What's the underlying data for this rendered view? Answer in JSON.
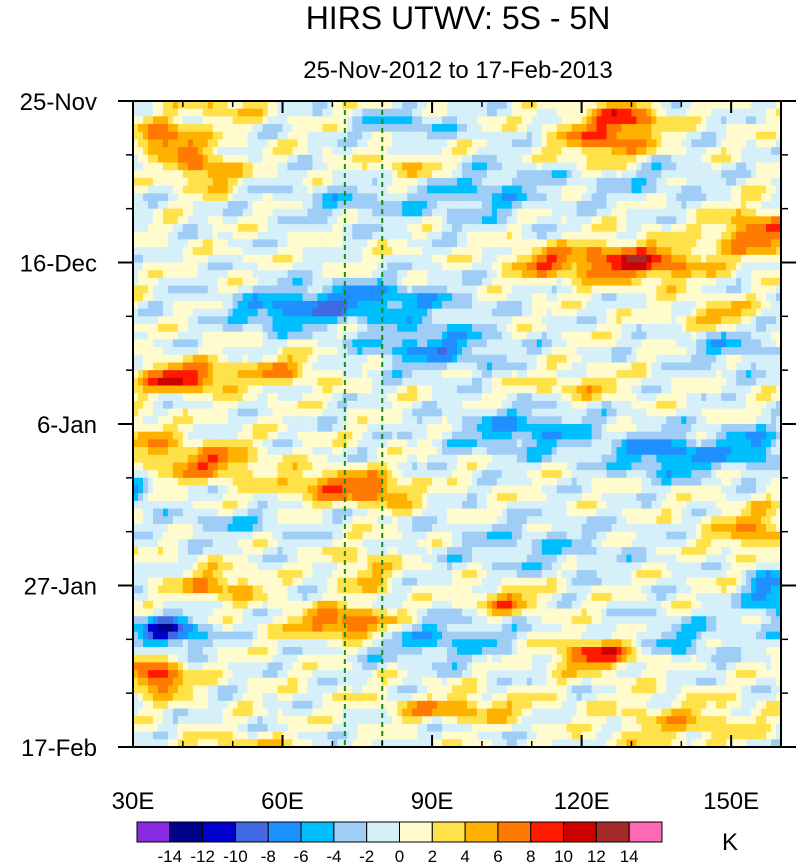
{
  "chart_data": {
    "type": "heatmap",
    "title": "HIRS UTWV: 5S - 5N",
    "subtitle": "25-Nov-2012 to 17-Feb-2013",
    "x_axis": {
      "range": [
        30,
        160
      ],
      "ticks": [
        {
          "value": 30,
          "label": "30E"
        },
        {
          "value": 60,
          "label": "60E"
        },
        {
          "value": 90,
          "label": "90E"
        },
        {
          "value": 120,
          "label": "120E"
        },
        {
          "value": 150,
          "label": "150E"
        }
      ],
      "minor_step": 10
    },
    "y_axis": {
      "range_days": [
        0,
        84
      ],
      "ticks": [
        {
          "value": 0,
          "label": "25-Nov"
        },
        {
          "value": 21,
          "label": "16-Dec"
        },
        {
          "value": 42,
          "label": "6-Jan"
        },
        {
          "value": 63,
          "label": "27-Jan"
        },
        {
          "value": 84,
          "label": "17-Feb"
        }
      ],
      "minor_step": 7
    },
    "reference_lines_lon": [
      72.5,
      80
    ],
    "colorbar": {
      "unit": "K",
      "levels": [
        -14,
        -12,
        -10,
        -8,
        -6,
        -4,
        -2,
        0,
        2,
        4,
        6,
        8,
        10,
        12,
        14
      ],
      "labels": [
        "-14",
        "-12",
        "-10",
        "-8",
        "-6",
        "-4",
        "-2",
        "0",
        "2",
        "4",
        "6",
        "8",
        "10",
        "12",
        "14"
      ],
      "colors": [
        "#8a2be2",
        "#00008b",
        "#0000cd",
        "#4169e1",
        "#1e90ff",
        "#00bfff",
        "#a0cdf6",
        "#d6f0fa",
        "#fffbcc",
        "#ffe14a",
        "#ffb100",
        "#ff7a00",
        "#ff1a00",
        "#cc0000",
        "#a52a2a",
        "#ff69b4"
      ]
    },
    "anomaly_features": [
      {
        "lon": 37,
        "day": 5,
        "dlon": 6,
        "dday": 2.2,
        "amp": 9
      },
      {
        "lon": 45,
        "day": 9,
        "dlon": 6,
        "dday": 2.5,
        "amp": 7
      },
      {
        "lon": 48,
        "day": 1,
        "dlon": 8,
        "dday": 1.8,
        "amp": 4
      },
      {
        "lon": 125,
        "day": 5,
        "dlon": 9,
        "dday": 3.5,
        "amp": 8
      },
      {
        "lon": 130,
        "day": 2,
        "dlon": 6,
        "dday": 2,
        "amp": 6
      },
      {
        "lon": 85,
        "day": 9,
        "dlon": 8,
        "dday": 2,
        "amp": 4
      },
      {
        "lon": 130,
        "day": 21,
        "dlon": 14,
        "dday": 2.5,
        "amp": 10
      },
      {
        "lon": 155,
        "day": 17,
        "dlon": 8,
        "dday": 3,
        "amp": 8
      },
      {
        "lon": 112,
        "day": 21,
        "dlon": 7,
        "dday": 2,
        "amp": 5
      },
      {
        "lon": 148,
        "day": 28,
        "dlon": 8,
        "dday": 2,
        "amp": 7
      },
      {
        "lon": 40,
        "day": 36,
        "dlon": 10,
        "dday": 1.8,
        "amp": 10
      },
      {
        "lon": 60,
        "day": 35,
        "dlon": 8,
        "dday": 2,
        "amp": 5
      },
      {
        "lon": 45,
        "day": 47,
        "dlon": 10,
        "dday": 2.5,
        "amp": 7
      },
      {
        "lon": 70,
        "day": 50,
        "dlon": 10,
        "dday": 2,
        "amp": 7
      },
      {
        "lon": 80,
        "day": 51,
        "dlon": 6,
        "dday": 1.8,
        "amp": 6
      },
      {
        "lon": 33,
        "day": 44,
        "dlon": 5,
        "dday": 3,
        "amp": 4
      },
      {
        "lon": 155,
        "day": 56,
        "dlon": 8,
        "dday": 3,
        "amp": 6
      },
      {
        "lon": 120,
        "day": 37,
        "dlon": 10,
        "dday": 1.5,
        "amp": 4
      },
      {
        "lon": 47,
        "day": 63,
        "dlon": 8,
        "dday": 2,
        "amp": 6
      },
      {
        "lon": 77,
        "day": 61,
        "dlon": 6,
        "dday": 3,
        "amp": 4
      },
      {
        "lon": 73,
        "day": 68,
        "dlon": 10,
        "dday": 2,
        "amp": 10
      },
      {
        "lon": 105,
        "day": 65,
        "dlon": 7,
        "dday": 2,
        "amp": 6
      },
      {
        "lon": 123,
        "day": 72,
        "dlon": 9,
        "dday": 2,
        "amp": 9
      },
      {
        "lon": 35,
        "day": 75,
        "dlon": 6,
        "dday": 2.2,
        "amp": 10
      },
      {
        "lon": 95,
        "day": 79,
        "dlon": 14,
        "dday": 1.5,
        "amp": 6
      },
      {
        "lon": 50,
        "day": 84,
        "dlon": 10,
        "dday": 1.5,
        "amp": 4
      },
      {
        "lon": 140,
        "day": 81,
        "dlon": 14,
        "dday": 3,
        "amp": 4
      },
      {
        "lon": 75,
        "day": 26,
        "dlon": 20,
        "dday": 2.5,
        "amp": -7
      },
      {
        "lon": 90,
        "day": 32,
        "dlon": 14,
        "dday": 3,
        "amp": -6
      },
      {
        "lon": 60,
        "day": 28,
        "dlon": 10,
        "dday": 2,
        "amp": -5
      },
      {
        "lon": 138,
        "day": 46,
        "dlon": 12,
        "dday": 3,
        "amp": -7
      },
      {
        "lon": 108,
        "day": 43,
        "dlon": 14,
        "dday": 3,
        "amp": -6
      },
      {
        "lon": 155,
        "day": 45,
        "dlon": 6,
        "dday": 2.5,
        "amp": -6
      },
      {
        "lon": 37,
        "day": 69,
        "dlon": 7,
        "dday": 2,
        "amp": -11
      },
      {
        "lon": 90,
        "day": 70,
        "dlon": 16,
        "dday": 3,
        "amp": -5
      },
      {
        "lon": 158,
        "day": 64,
        "dlon": 5,
        "dday": 4,
        "amp": -7
      },
      {
        "lon": 140,
        "day": 70,
        "dlon": 10,
        "dday": 3,
        "amp": -4
      },
      {
        "lon": 75,
        "day": 13,
        "dlon": 16,
        "dday": 3,
        "amp": -3
      },
      {
        "lon": 100,
        "day": 12,
        "dlon": 12,
        "dday": 4,
        "amp": -4
      },
      {
        "lon": 130,
        "day": 10,
        "dlon": 16,
        "dday": 3,
        "amp": -3
      },
      {
        "lon": 150,
        "day": 31,
        "dlon": 10,
        "dday": 4,
        "amp": -4
      },
      {
        "lon": 50,
        "day": 55,
        "dlon": 14,
        "dday": 2,
        "amp": -3
      },
      {
        "lon": 31,
        "day": 51,
        "dlon": 3,
        "dday": 1.5,
        "amp": -7
      },
      {
        "lon": 110,
        "day": 58,
        "dlon": 18,
        "dday": 4,
        "amp": -3
      },
      {
        "lon": 85,
        "day": 3,
        "dlon": 10,
        "dday": 2,
        "amp": -4
      }
    ]
  }
}
